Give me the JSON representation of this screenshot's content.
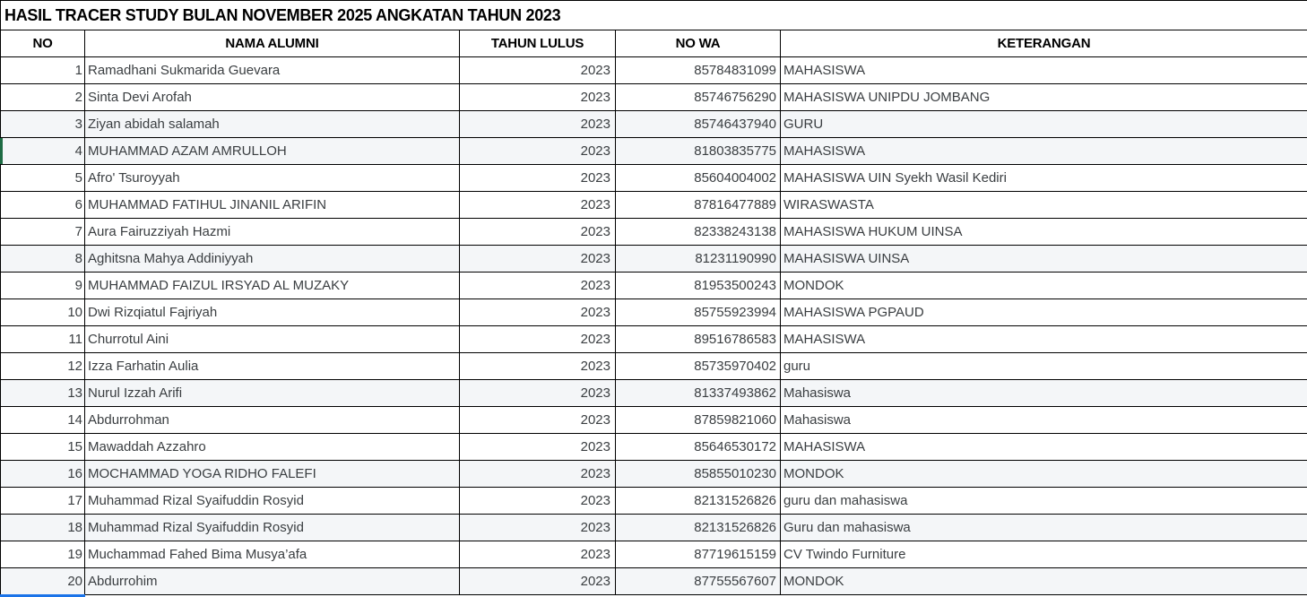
{
  "title": "HASIL TRACER STUDY BULAN NOVEMBER 2025 ANGKATAN TAHUN 2023",
  "table": {
    "columns": [
      {
        "key": "no",
        "label": "NO",
        "align": "right"
      },
      {
        "key": "nama",
        "label": "NAMA ALUMNI",
        "align": "left"
      },
      {
        "key": "tahun",
        "label": "TAHUN LULUS",
        "align": "right"
      },
      {
        "key": "wa",
        "label": "NO WA",
        "align": "right"
      },
      {
        "key": "ket",
        "label": "KETERANGAN",
        "align": "left"
      }
    ],
    "rows": [
      {
        "no": "1",
        "nama": "Ramadhani Sukmarida Guevara",
        "tahun": "2023",
        "wa": "85784831099",
        "ket": "MAHASISWA",
        "shaded": false
      },
      {
        "no": "2",
        "nama": "Sinta Devi Arofah",
        "tahun": "2023",
        "wa": "85746756290",
        "ket": "MAHASISWA UNIPDU JOMBANG",
        "shaded": false
      },
      {
        "no": "3",
        "nama": "Ziyan abidah salamah",
        "tahun": "2023",
        "wa": "85746437940",
        "ket": "GURU",
        "shaded": true
      },
      {
        "no": "4",
        "nama": "MUHAMMAD AZAM AMRULLOH",
        "tahun": "2023",
        "wa": "81803835775",
        "ket": "MAHASISWA",
        "shaded": true
      },
      {
        "no": "5",
        "nama": "Afro' Tsuroyyah",
        "tahun": "2023",
        "wa": "85604004002",
        "ket": "MAHASISWA UIN Syekh Wasil Kediri",
        "shaded": false
      },
      {
        "no": "6",
        "nama": "MUHAMMAD FATIHUL JINANIL ARIFIN",
        "tahun": "2023",
        "wa": "87816477889",
        "ket": "WIRASWASTA",
        "shaded": false
      },
      {
        "no": "7",
        "nama": "Aura Fairuzziyah Hazmi",
        "tahun": "2023",
        "wa": "82338243138",
        "ket": "MAHASISWA HUKUM UINSA",
        "shaded": false
      },
      {
        "no": "8",
        "nama": "Aghitsna Mahya Addiniyyah",
        "tahun": "2023",
        "wa": "81231190990",
        "ket": "MAHASISWA UINSA",
        "shaded": true
      },
      {
        "no": "9",
        "nama": "MUHAMMAD FAIZUL IRSYAD AL MUZAKY",
        "tahun": "2023",
        "wa": "81953500243",
        "ket": "MONDOK",
        "shaded": false
      },
      {
        "no": "10",
        "nama": "Dwi Rizqiatul Fajriyah",
        "tahun": "2023",
        "wa": "85755923994",
        "ket": "MAHASISWA PGPAUD",
        "shaded": false
      },
      {
        "no": "11",
        "nama": "Churrotul Aini",
        "tahun": "2023",
        "wa": "89516786583",
        "ket": "MAHASISWA",
        "shaded": false
      },
      {
        "no": "12",
        "nama": "Izza Farhatin Aulia",
        "tahun": "2023",
        "wa": "85735970402",
        "ket": "guru",
        "shaded": false
      },
      {
        "no": "13",
        "nama": "Nurul Izzah Arifi",
        "tahun": "2023",
        "wa": "81337493862",
        "ket": "Mahasiswa",
        "shaded": true
      },
      {
        "no": "14",
        "nama": "Abdurrohman",
        "tahun": "2023",
        "wa": "87859821060",
        "ket": "Mahasiswa",
        "shaded": false
      },
      {
        "no": "15",
        "nama": "Mawaddah Azzahro",
        "tahun": "2023",
        "wa": "85646530172",
        "ket": "MAHASISWA",
        "shaded": false
      },
      {
        "no": "16",
        "nama": "MOCHAMMAD YOGA RIDHO FALEFI",
        "tahun": "2023",
        "wa": "85855010230",
        "ket": "MONDOK",
        "shaded": true
      },
      {
        "no": "17",
        "nama": "Muhammad Rizal Syaifuddin Rosyid",
        "tahun": "2023",
        "wa": "82131526826",
        "ket": "guru dan mahasiswa",
        "shaded": false
      },
      {
        "no": "18",
        "nama": "Muhammad Rizal Syaifuddin Rosyid",
        "tahun": "2023",
        "wa": "82131526826",
        "ket": "Guru dan mahasiswa",
        "shaded": true
      },
      {
        "no": "19",
        "nama": "Muchammad Fahed Bima Musya’afa",
        "tahun": "2023",
        "wa": "87719615159",
        "ket": "CV Twindo Furniture",
        "shaded": false
      },
      {
        "no": "20",
        "nama": "Abdurrohim",
        "tahun": "2023",
        "wa": "87755567607",
        "ket": "MONDOK",
        "shaded": true
      }
    ]
  },
  "colors": {
    "grid": "#000000",
    "row_shade": "#f4f6f8",
    "text": "#3a3e41",
    "header_text": "#000000",
    "selection_green": "#1e6b44",
    "selection_blue": "#1a73e8",
    "background": "#ffffff"
  }
}
